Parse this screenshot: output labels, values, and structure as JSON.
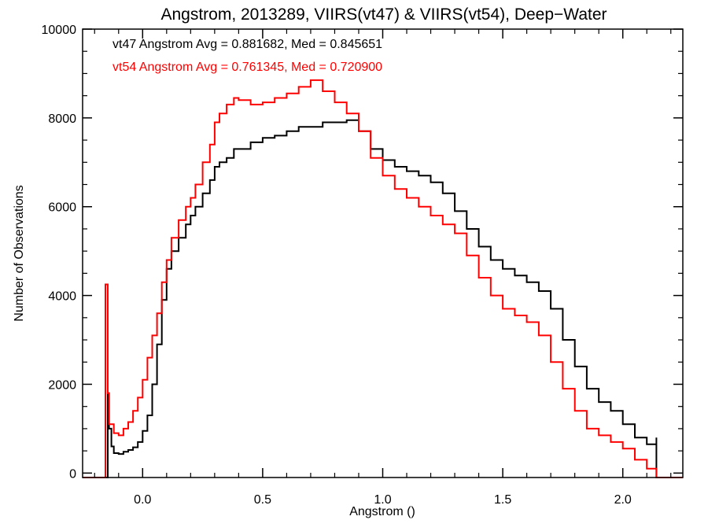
{
  "chart_data": {
    "type": "line",
    "title": "Angstrom, 2013289, VIIRS(vt47) & VIIRS(vt54), Deep−Water",
    "xlabel": "Angstrom ()",
    "ylabel": "Number of Observations",
    "xlim": [
      -0.25,
      2.25
    ],
    "ylim": [
      -100,
      10000
    ],
    "x_ticks": [
      0.0,
      0.5,
      1.0,
      1.5,
      2.0
    ],
    "x_tick_labels": [
      "0.0",
      "0.5",
      "1.0",
      "1.5",
      "2.0"
    ],
    "y_ticks": [
      0,
      2000,
      4000,
      6000,
      8000,
      10000
    ],
    "y_tick_labels": [
      "0",
      "2000",
      "4000",
      "6000",
      "8000",
      "10000"
    ],
    "grid": false,
    "step": true,
    "annotations": [
      {
        "text": "vt47 Angstrom Avg = 0.881682, Med = 0.845651",
        "color": "#000000"
      },
      {
        "text": "vt54 Angstrom Avg = 0.761345, Med = 0.720900",
        "color": "#ff0000"
      }
    ],
    "series": [
      {
        "color": "#000000",
        "points": [
          [
            -0.25,
            -100
          ],
          [
            -0.145,
            -100
          ],
          [
            -0.145,
            1800
          ],
          [
            -0.14,
            1000
          ],
          [
            -0.13,
            600
          ],
          [
            -0.12,
            450
          ],
          [
            -0.1,
            430
          ],
          [
            -0.08,
            480
          ],
          [
            -0.06,
            520
          ],
          [
            -0.04,
            580
          ],
          [
            -0.02,
            700
          ],
          [
            0.0,
            950
          ],
          [
            0.02,
            1300
          ],
          [
            0.04,
            2000
          ],
          [
            0.06,
            2900
          ],
          [
            0.08,
            3900
          ],
          [
            0.1,
            4600
          ],
          [
            0.12,
            5000
          ],
          [
            0.15,
            5300
          ],
          [
            0.18,
            5600
          ],
          [
            0.2,
            5800
          ],
          [
            0.22,
            6000
          ],
          [
            0.25,
            6300
          ],
          [
            0.28,
            6600
          ],
          [
            0.3,
            6900
          ],
          [
            0.32,
            7000
          ],
          [
            0.35,
            7100
          ],
          [
            0.38,
            7300
          ],
          [
            0.4,
            7300
          ],
          [
            0.45,
            7450
          ],
          [
            0.5,
            7550
          ],
          [
            0.55,
            7600
          ],
          [
            0.6,
            7700
          ],
          [
            0.65,
            7800
          ],
          [
            0.7,
            7800
          ],
          [
            0.75,
            7900
          ],
          [
            0.8,
            7900
          ],
          [
            0.85,
            7950
          ],
          [
            0.9,
            7700
          ],
          [
            0.95,
            7300
          ],
          [
            1.0,
            7050
          ],
          [
            1.05,
            6900
          ],
          [
            1.1,
            6800
          ],
          [
            1.15,
            6700
          ],
          [
            1.2,
            6550
          ],
          [
            1.25,
            6300
          ],
          [
            1.3,
            5900
          ],
          [
            1.35,
            5500
          ],
          [
            1.4,
            5100
          ],
          [
            1.45,
            4800
          ],
          [
            1.5,
            4600
          ],
          [
            1.55,
            4450
          ],
          [
            1.6,
            4300
          ],
          [
            1.65,
            4100
          ],
          [
            1.7,
            3700
          ],
          [
            1.75,
            3000
          ],
          [
            1.8,
            2400
          ],
          [
            1.85,
            1900
          ],
          [
            1.9,
            1600
          ],
          [
            1.95,
            1400
          ],
          [
            2.0,
            1100
          ],
          [
            2.05,
            800
          ],
          [
            2.1,
            650
          ],
          [
            2.14,
            800
          ],
          [
            2.14,
            -100
          ],
          [
            2.25,
            -100
          ]
        ]
      },
      {
        "color": "#ff0000",
        "points": [
          [
            -0.25,
            -100
          ],
          [
            -0.155,
            -100
          ],
          [
            -0.155,
            4250
          ],
          [
            -0.145,
            4250
          ],
          [
            -0.145,
            1800
          ],
          [
            -0.14,
            1100
          ],
          [
            -0.12,
            900
          ],
          [
            -0.1,
            850
          ],
          [
            -0.08,
            1000
          ],
          [
            -0.06,
            1150
          ],
          [
            -0.04,
            1400
          ],
          [
            -0.02,
            1700
          ],
          [
            0.0,
            2100
          ],
          [
            0.02,
            2600
          ],
          [
            0.04,
            3100
          ],
          [
            0.06,
            3600
          ],
          [
            0.08,
            4300
          ],
          [
            0.1,
            4800
          ],
          [
            0.12,
            5300
          ],
          [
            0.15,
            5700
          ],
          [
            0.18,
            6000
          ],
          [
            0.2,
            6200
          ],
          [
            0.22,
            6500
          ],
          [
            0.25,
            7000
          ],
          [
            0.28,
            7400
          ],
          [
            0.3,
            7900
          ],
          [
            0.32,
            8100
          ],
          [
            0.35,
            8300
          ],
          [
            0.38,
            8450
          ],
          [
            0.4,
            8400
          ],
          [
            0.45,
            8300
          ],
          [
            0.5,
            8350
          ],
          [
            0.55,
            8450
          ],
          [
            0.6,
            8550
          ],
          [
            0.65,
            8700
          ],
          [
            0.7,
            8850
          ],
          [
            0.75,
            8600
          ],
          [
            0.8,
            8350
          ],
          [
            0.85,
            8100
          ],
          [
            0.9,
            7700
          ],
          [
            0.95,
            7100
          ],
          [
            1.0,
            6700
          ],
          [
            1.05,
            6400
          ],
          [
            1.1,
            6200
          ],
          [
            1.15,
            6000
          ],
          [
            1.2,
            5800
          ],
          [
            1.25,
            5600
          ],
          [
            1.3,
            5400
          ],
          [
            1.35,
            4900
          ],
          [
            1.4,
            4400
          ],
          [
            1.45,
            4000
          ],
          [
            1.5,
            3700
          ],
          [
            1.55,
            3550
          ],
          [
            1.6,
            3400
          ],
          [
            1.65,
            3100
          ],
          [
            1.7,
            2500
          ],
          [
            1.75,
            1900
          ],
          [
            1.8,
            1400
          ],
          [
            1.85,
            1000
          ],
          [
            1.9,
            850
          ],
          [
            1.95,
            700
          ],
          [
            2.0,
            550
          ],
          [
            2.05,
            300
          ],
          [
            2.1,
            100
          ],
          [
            2.14,
            50
          ],
          [
            2.14,
            -100
          ],
          [
            2.25,
            -100
          ]
        ]
      }
    ]
  }
}
